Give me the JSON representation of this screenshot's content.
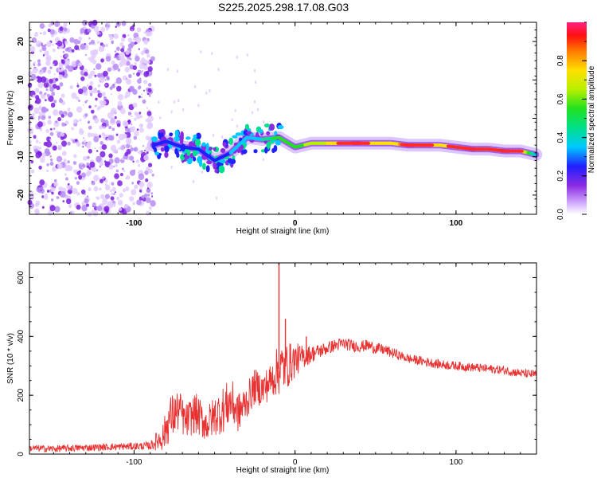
{
  "title": "S225.2025.298.17.08.G03",
  "chart_data": [
    {
      "type": "heatmap",
      "xlabel": "Height of straight line (km)",
      "ylabel": "Frequency (Hz)",
      "xlim": [
        -165,
        150
      ],
      "ylim": [
        -25,
        25
      ],
      "xticks": [
        -100,
        0,
        100
      ],
      "yticks": [
        -20,
        -10,
        0,
        10,
        20
      ],
      "colorbar": {
        "label": "Normalized spectral amplitude",
        "range": [
          0.0,
          1.0
        ],
        "ticks": [
          0.0,
          0.2,
          0.4,
          0.6,
          0.8
        ],
        "tick_labels": [
          "0.0",
          "0.2",
          "0.4",
          "0.6",
          "0.8"
        ]
      },
      "noise_region_km": [
        -165,
        -88
      ],
      "signal_track": {
        "x": [
          -88,
          -80,
          -70,
          -60,
          -50,
          -40,
          -30,
          -20,
          -10,
          0,
          10,
          20,
          30,
          40,
          50,
          60,
          70,
          80,
          90,
          100,
          110,
          120,
          130,
          140,
          150
        ],
        "frequency": [
          -7,
          -6,
          -7.5,
          -8,
          -11,
          -9,
          -5,
          -5.5,
          -5,
          -7.5,
          -6.5,
          -6.5,
          -6.5,
          -6.5,
          -6.5,
          -6.5,
          -7,
          -7,
          -7,
          -7.5,
          -8,
          -8,
          -8.5,
          -8.5,
          -9.5
        ],
        "amplitude": [
          0.3,
          0.35,
          0.3,
          0.3,
          0.3,
          0.35,
          0.4,
          0.45,
          0.6,
          0.55,
          0.7,
          0.75,
          0.9,
          0.95,
          0.8,
          0.75,
          0.95,
          0.9,
          0.8,
          0.9,
          0.95,
          0.85,
          0.95,
          0.9,
          0.4
        ]
      }
    },
    {
      "type": "line",
      "xlabel": "Height of straight line (km)",
      "ylabel": "SNR (10 * v/v)",
      "xlim": [
        -165,
        150
      ],
      "ylim": [
        0,
        650
      ],
      "xticks": [
        -100,
        0,
        100
      ],
      "yticks": [
        0,
        200,
        400,
        600
      ],
      "series": [
        {
          "name": "SNR",
          "color": "#e83232",
          "x": [
            -165,
            -150,
            -130,
            -110,
            -90,
            -82,
            -78,
            -72,
            -68,
            -62,
            -55,
            -50,
            -45,
            -40,
            -35,
            -30,
            -25,
            -20,
            -15,
            -10,
            -5,
            0,
            5,
            10,
            15,
            20,
            25,
            30,
            35,
            40,
            45,
            50,
            55,
            60,
            65,
            70,
            80,
            90,
            100,
            110,
            120,
            130,
            140,
            150
          ],
          "y": [
            20,
            18,
            22,
            25,
            28,
            60,
            120,
            150,
            110,
            140,
            100,
            130,
            150,
            180,
            140,
            180,
            230,
            220,
            250,
            290,
            300,
            320,
            330,
            340,
            350,
            360,
            370,
            375,
            370,
            365,
            370,
            360,
            355,
            345,
            335,
            325,
            315,
            305,
            300,
            295,
            290,
            285,
            275,
            270
          ],
          "noise_amplitude": [
            12,
            12,
            12,
            12,
            14,
            50,
            80,
            70,
            60,
            70,
            60,
            70,
            80,
            80,
            70,
            60,
            60,
            60,
            60,
            90,
            80,
            60,
            40,
            30,
            25,
            22,
            22,
            22,
            20,
            20,
            20,
            20,
            18,
            18,
            16,
            16,
            16,
            16,
            15,
            15,
            15,
            15,
            15,
            15
          ]
        }
      ],
      "annotations": [
        {
          "x": -10,
          "y": 650,
          "note": "peak"
        },
        {
          "x": -6,
          "y": 460,
          "note": "spike"
        },
        {
          "x": 7,
          "y": 400,
          "note": "spike"
        }
      ]
    }
  ]
}
